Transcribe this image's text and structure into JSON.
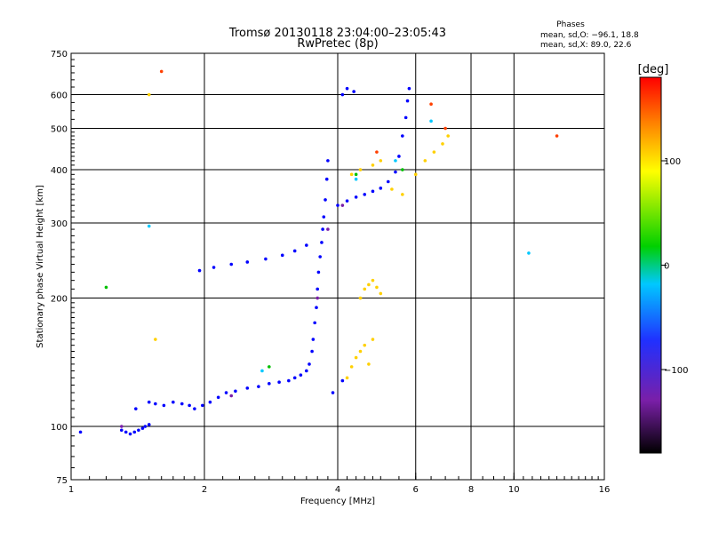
{
  "chart_data": {
    "type": "scatter",
    "title": "Tromsø 20130118 23:04:00–23:05:43",
    "subtitle": "RwPretec (8p)",
    "xlabel": "Frequency [MHz]",
    "ylabel": "Stationary phase Virtual Height [km]",
    "x_scale": "log",
    "y_scale": "log",
    "xlim": [
      1,
      16
    ],
    "ylim": [
      75,
      750
    ],
    "xticks": [
      "1",
      "2",
      "4",
      "6",
      "8",
      "10",
      "16"
    ],
    "xtick_values": [
      1,
      2,
      4,
      6,
      8,
      10,
      16
    ],
    "yticks": [
      "75",
      "100",
      "200",
      "300",
      "400",
      "500",
      "600",
      "750"
    ],
    "ytick_values": [
      75,
      100,
      200,
      300,
      400,
      500,
      600,
      750
    ],
    "grid": true,
    "info_title": "Phases",
    "info_lines": [
      "mean, sd,O: −96.1, 18.8",
      "mean, sd,X:  89.0, 22.6"
    ],
    "colorbar": {
      "label": "[deg]",
      "ticks": [
        "100",
        "0",
        "−100"
      ],
      "tick_values": [
        100,
        0,
        -100
      ],
      "range": [
        -180,
        180
      ],
      "colors": [
        "#000000",
        "#7a1fa8",
        "#2030ff",
        "#00c8ff",
        "#00d000",
        "#ffff00",
        "#ff8000",
        "#ff0000"
      ]
    },
    "series": [
      {
        "color": "#0000ff",
        "points": [
          [
            1.05,
            97
          ],
          [
            1.3,
            98
          ],
          [
            1.33,
            97
          ],
          [
            1.36,
            96
          ],
          [
            1.39,
            97
          ],
          [
            1.42,
            98
          ],
          [
            1.45,
            99
          ],
          [
            1.47,
            100
          ],
          [
            1.5,
            101
          ],
          [
            1.4,
            110
          ],
          [
            1.5,
            114
          ],
          [
            1.55,
            113
          ],
          [
            1.62,
            112
          ],
          [
            1.7,
            114
          ],
          [
            1.78,
            113
          ],
          [
            1.85,
            112
          ],
          [
            1.9,
            110
          ],
          [
            1.98,
            112
          ],
          [
            2.06,
            114
          ],
          [
            2.15,
            117
          ],
          [
            2.24,
            120
          ],
          [
            2.35,
            121
          ],
          [
            2.5,
            123
          ],
          [
            2.65,
            124
          ],
          [
            2.8,
            126
          ],
          [
            2.95,
            127
          ],
          [
            3.1,
            128
          ],
          [
            3.2,
            130
          ],
          [
            3.3,
            132
          ],
          [
            3.4,
            135
          ],
          [
            3.45,
            140
          ],
          [
            3.5,
            150
          ],
          [
            3.52,
            160
          ],
          [
            3.55,
            175
          ],
          [
            3.58,
            190
          ],
          [
            3.6,
            210
          ],
          [
            3.62,
            230
          ],
          [
            3.65,
            250
          ],
          [
            3.68,
            270
          ],
          [
            3.7,
            290
          ],
          [
            3.72,
            310
          ],
          [
            3.75,
            340
          ],
          [
            3.78,
            380
          ],
          [
            3.8,
            420
          ],
          [
            1.95,
            232
          ],
          [
            2.1,
            236
          ],
          [
            2.3,
            240
          ],
          [
            2.5,
            243
          ],
          [
            2.75,
            247
          ],
          [
            3.0,
            252
          ],
          [
            3.2,
            258
          ],
          [
            3.4,
            266
          ],
          [
            4.0,
            330
          ],
          [
            4.2,
            338
          ],
          [
            4.4,
            345
          ],
          [
            4.6,
            350
          ],
          [
            4.8,
            356
          ],
          [
            5.0,
            362
          ],
          [
            5.2,
            375
          ],
          [
            5.4,
            395
          ],
          [
            5.5,
            430
          ],
          [
            5.6,
            480
          ],
          [
            5.7,
            530
          ],
          [
            5.75,
            580
          ],
          [
            5.8,
            620
          ],
          [
            4.1,
            600
          ],
          [
            4.2,
            620
          ],
          [
            4.35,
            610
          ],
          [
            3.9,
            120
          ],
          [
            4.1,
            128
          ]
        ]
      },
      {
        "color": "#ffd000",
        "points": [
          [
            4.2,
            130
          ],
          [
            4.3,
            138
          ],
          [
            4.4,
            145
          ],
          [
            4.5,
            150
          ],
          [
            4.6,
            155
          ],
          [
            4.7,
            140
          ],
          [
            4.8,
            160
          ],
          [
            4.5,
            200
          ],
          [
            4.6,
            210
          ],
          [
            4.7,
            215
          ],
          [
            4.8,
            220
          ],
          [
            4.9,
            212
          ],
          [
            5.0,
            205
          ],
          [
            4.3,
            390
          ],
          [
            4.5,
            400
          ],
          [
            4.8,
            410
          ],
          [
            5.0,
            420
          ],
          [
            5.3,
            360
          ],
          [
            5.6,
            350
          ],
          [
            6.0,
            390
          ],
          [
            6.3,
            420
          ],
          [
            6.6,
            440
          ],
          [
            6.9,
            460
          ],
          [
            7.1,
            480
          ],
          [
            1.5,
            600
          ],
          [
            1.55,
            160
          ]
        ]
      },
      {
        "color": "#00c8ff",
        "points": [
          [
            2.7,
            135
          ],
          [
            4.4,
            380
          ],
          [
            5.4,
            420
          ],
          [
            6.5,
            520
          ],
          [
            1.5,
            295
          ],
          [
            10.8,
            255
          ]
        ]
      },
      {
        "color": "#ff4000",
        "points": [
          [
            1.6,
            680
          ],
          [
            4.9,
            440
          ],
          [
            6.5,
            570
          ],
          [
            7.0,
            500
          ],
          [
            12.5,
            480
          ]
        ]
      },
      {
        "color": "#00c000",
        "points": [
          [
            1.2,
            212
          ],
          [
            2.8,
            138
          ],
          [
            4.4,
            390
          ],
          [
            5.6,
            400
          ]
        ]
      },
      {
        "color": "#7a1fa8",
        "points": [
          [
            1.3,
            100
          ],
          [
            2.3,
            118
          ],
          [
            3.6,
            200
          ],
          [
            3.8,
            290
          ],
          [
            4.1,
            330
          ]
        ]
      }
    ]
  }
}
